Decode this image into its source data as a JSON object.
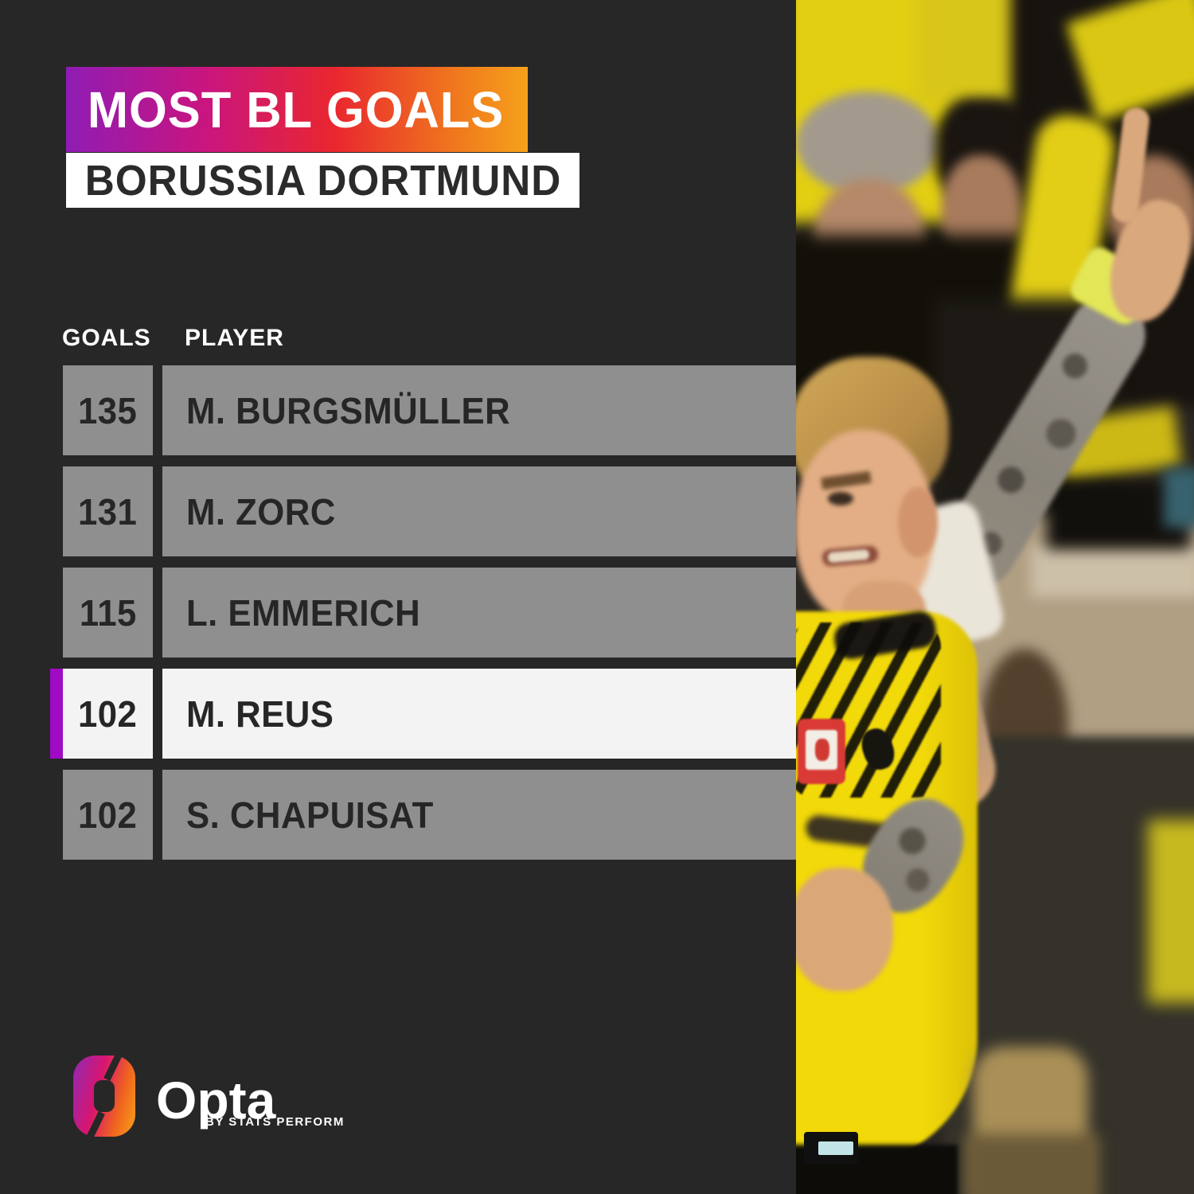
{
  "header": {
    "title": "MOST BL GOALS",
    "subtitle": "BORUSSIA DORTMUND"
  },
  "table": {
    "goals_header": "GOALS",
    "player_header": "PLAYER",
    "rows": [
      {
        "goals": "135",
        "player": "M. BURGSMÜLLER",
        "highlighted": false
      },
      {
        "goals": "131",
        "player": "M. ZORC",
        "highlighted": false
      },
      {
        "goals": "115",
        "player": "L. EMMERICH",
        "highlighted": false
      },
      {
        "goals": "102",
        "player": "M. REUS",
        "highlighted": true
      },
      {
        "goals": "102",
        "player": "S. CHAPUISAT",
        "highlighted": false
      }
    ]
  },
  "footer": {
    "brand": "Opta",
    "brand_sub": "BY STATS PERFORM"
  },
  "colors": {
    "background": "#272727",
    "banner_gradient": [
      "#8f1cb4",
      "#c9157f",
      "#e9262f",
      "#f6a11b"
    ],
    "row_gray": "#8f8f8f",
    "row_highlight": "#f3f3f3",
    "highlight_accent": "#a00ac4",
    "text_dark": "#262626",
    "text_white": "#ffffff",
    "dortmund_yellow": "#f2d909"
  },
  "chart_data": {
    "type": "table",
    "title": "MOST BL GOALS",
    "subtitle": "BORUSSIA DORTMUND",
    "columns": [
      "GOALS",
      "PLAYER"
    ],
    "rows": [
      [
        135,
        "M. BURGSMÜLLER"
      ],
      [
        131,
        "M. ZORC"
      ],
      [
        115,
        "L. EMMERICH"
      ],
      [
        102,
        "M. REUS"
      ],
      [
        102,
        "S. CHAPUISAT"
      ]
    ],
    "highlighted_row": "M. REUS",
    "layout": "leaderboard, goals column left, player column right, 4th row highlighted white with purple accent bar"
  }
}
